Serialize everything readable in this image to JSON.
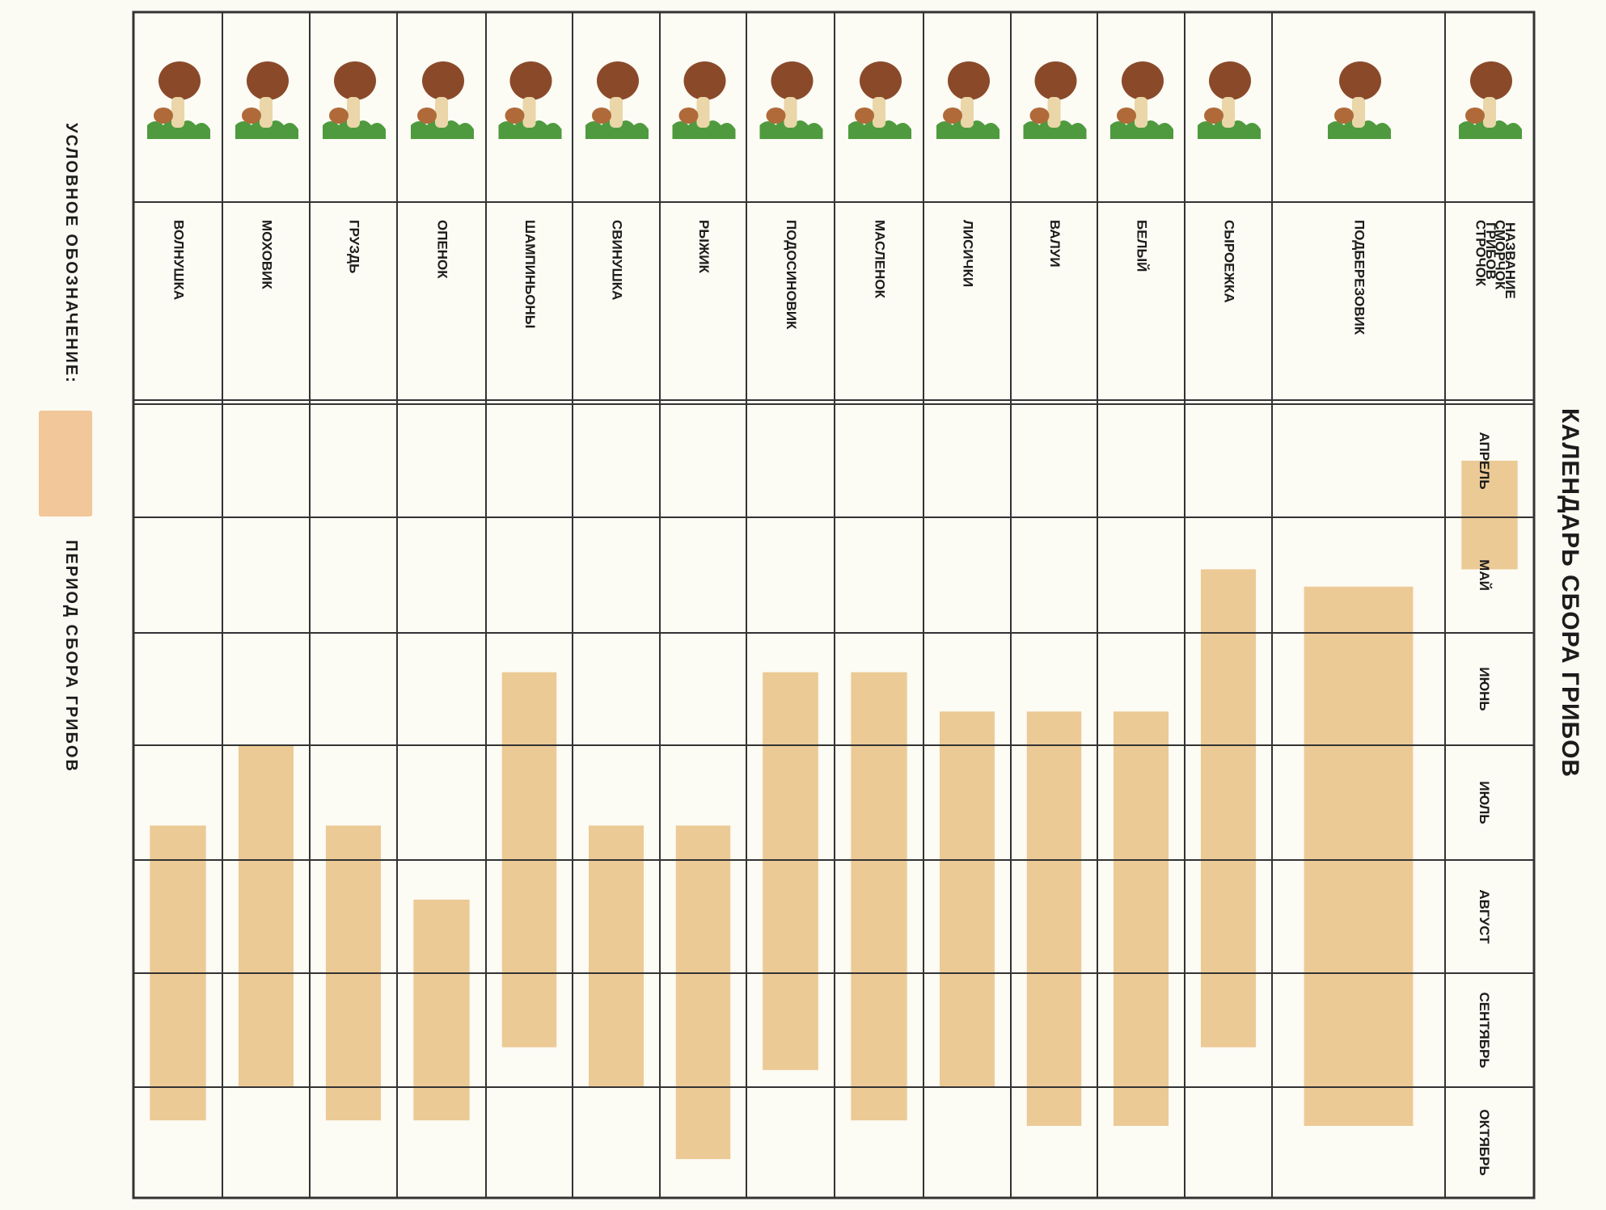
{
  "title": "КАЛЕНДАРЬ СБОРА ГРИБОВ",
  "header_label": [
    "НАЗВАНИЕ",
    "ГРИБОВ"
  ],
  "legend": {
    "label": "УСЛОВНОЕ ОБОЗНАЧЕНИЕ:",
    "item": "ПЕРИОД СБОРА ГРИБОВ",
    "swatch_color": "#f2c79a"
  },
  "months": [
    "АПРЕЛЬ",
    "МАЙ",
    "ИЮНЬ",
    "ИЮЛЬ",
    "АВГУСТ",
    "СЕНТЯБРЬ",
    "ОКТЯБРЬ"
  ],
  "mushrooms": [
    {
      "lines": [
        "СМОРЧОК",
        "СТРОЧОК"
      ],
      "icon": "morel-icon"
    },
    {
      "lines": [
        "ПОДБЕРЕЗОВИК"
      ],
      "icon": "birch-bolete-icon"
    },
    {
      "lines": [
        "СЫРОЕЖКА"
      ],
      "icon": "russula-icon"
    },
    {
      "lines": [
        "БЕЛЫЙ"
      ],
      "icon": "porcini-icon"
    },
    {
      "lines": [
        "ВАЛУИ"
      ],
      "icon": "valui-icon"
    },
    {
      "lines": [
        "ЛИСИЧКИ"
      ],
      "icon": "chanterelle-icon"
    },
    {
      "lines": [
        "МАСЛЕНОК"
      ],
      "icon": "suillus-icon"
    },
    {
      "lines": [
        "ПОДОСИНОВИК"
      ],
      "icon": "aspen-bolete-icon"
    },
    {
      "lines": [
        "РЫЖИК"
      ],
      "icon": "saffron-milk-cap-icon"
    },
    {
      "lines": [
        "СВИНУШКА"
      ],
      "icon": "paxillus-icon"
    },
    {
      "lines": [
        "ШАМПИНЬОНЫ"
      ],
      "icon": "champignon-icon"
    },
    {
      "lines": [
        "ОПЕНОК"
      ],
      "icon": "honey-fungus-icon"
    },
    {
      "lines": [
        "ГРУЗДЬ"
      ],
      "icon": "milk-cap-icon"
    },
    {
      "lines": [
        "МОХОВИК"
      ],
      "icon": "xerocomus-icon"
    },
    {
      "lines": [
        "ВОЛНУШКА"
      ],
      "icon": "woolly-milkcap-icon"
    }
  ],
  "chart_data": {
    "type": "gantt",
    "title": "КАЛЕНДАРЬ СБОРА ГРИБОВ",
    "time_axis": [
      "АПРЕЛЬ",
      "МАЙ",
      "ИЮНЬ",
      "ИЮЛЬ",
      "АВГУСТ",
      "СЕНТЯБРЬ",
      "ОКТЯБРЬ"
    ],
    "unit": "month index from АПРЕЛЬ start (0 = start of АПРЕЛЬ, 7 = end of ОКТЯБРЬ)",
    "series": [
      {
        "name": "СМОРЧОК СТРОЧОК",
        "start": 0.5,
        "end": 1.45
      },
      {
        "name": "ПОДБЕРЕЗОВИК",
        "start": 1.6,
        "end": 6.35
      },
      {
        "name": "СЫРОЕЖКА",
        "start": 1.45,
        "end": 5.65
      },
      {
        "name": "БЕЛЫЙ",
        "start": 2.7,
        "end": 6.35
      },
      {
        "name": "ВАЛУИ",
        "start": 2.7,
        "end": 6.35
      },
      {
        "name": "ЛИСИЧКИ",
        "start": 2.7,
        "end": 6.0
      },
      {
        "name": "МАСЛЕНОК",
        "start": 2.35,
        "end": 6.3
      },
      {
        "name": "ПОДОСИНОВИК",
        "start": 2.35,
        "end": 5.85
      },
      {
        "name": "РЫЖИК",
        "start": 3.7,
        "end": 6.65
      },
      {
        "name": "СВИНУШКА",
        "start": 3.7,
        "end": 6.0
      },
      {
        "name": "ШАМПИНЬОНЫ",
        "start": 2.35,
        "end": 5.65
      },
      {
        "name": "ОПЕНОК",
        "start": 4.35,
        "end": 6.3
      },
      {
        "name": "ГРУЗДЬ",
        "start": 3.7,
        "end": 6.3
      },
      {
        "name": "МОХОВИК",
        "start": 3.0,
        "end": 6.0
      },
      {
        "name": "ВОЛНУШКА",
        "start": 3.7,
        "end": 6.3
      }
    ],
    "bar_color": "#e9c184",
    "grid": true
  }
}
